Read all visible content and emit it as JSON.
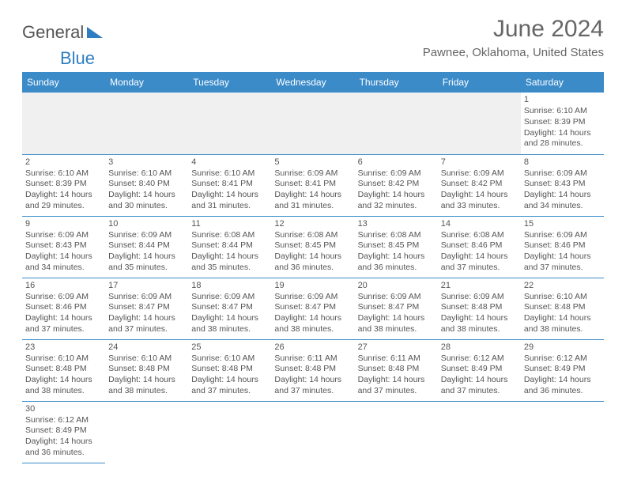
{
  "logo": {
    "part1": "General",
    "part2": "Blue"
  },
  "title": "June 2024",
  "location": "Pawnee, Oklahoma, United States",
  "colors": {
    "header_bg": "#3b8bc9",
    "header_text": "#ffffff",
    "border": "#3b8bc9",
    "text": "#555555",
    "title_color": "#666666",
    "logo_blue": "#2f7ec2"
  },
  "day_headers": [
    "Sunday",
    "Monday",
    "Tuesday",
    "Wednesday",
    "Thursday",
    "Friday",
    "Saturday"
  ],
  "weeks": [
    [
      null,
      null,
      null,
      null,
      null,
      null,
      {
        "n": "1",
        "sr": "6:10 AM",
        "ss": "8:39 PM",
        "dh": "14",
        "dm": "28"
      }
    ],
    [
      {
        "n": "2",
        "sr": "6:10 AM",
        "ss": "8:39 PM",
        "dh": "14",
        "dm": "29"
      },
      {
        "n": "3",
        "sr": "6:10 AM",
        "ss": "8:40 PM",
        "dh": "14",
        "dm": "30"
      },
      {
        "n": "4",
        "sr": "6:10 AM",
        "ss": "8:41 PM",
        "dh": "14",
        "dm": "31"
      },
      {
        "n": "5",
        "sr": "6:09 AM",
        "ss": "8:41 PM",
        "dh": "14",
        "dm": "31"
      },
      {
        "n": "6",
        "sr": "6:09 AM",
        "ss": "8:42 PM",
        "dh": "14",
        "dm": "32"
      },
      {
        "n": "7",
        "sr": "6:09 AM",
        "ss": "8:42 PM",
        "dh": "14",
        "dm": "33"
      },
      {
        "n": "8",
        "sr": "6:09 AM",
        "ss": "8:43 PM",
        "dh": "14",
        "dm": "34"
      }
    ],
    [
      {
        "n": "9",
        "sr": "6:09 AM",
        "ss": "8:43 PM",
        "dh": "14",
        "dm": "34"
      },
      {
        "n": "10",
        "sr": "6:09 AM",
        "ss": "8:44 PM",
        "dh": "14",
        "dm": "35"
      },
      {
        "n": "11",
        "sr": "6:08 AM",
        "ss": "8:44 PM",
        "dh": "14",
        "dm": "35"
      },
      {
        "n": "12",
        "sr": "6:08 AM",
        "ss": "8:45 PM",
        "dh": "14",
        "dm": "36"
      },
      {
        "n": "13",
        "sr": "6:08 AM",
        "ss": "8:45 PM",
        "dh": "14",
        "dm": "36"
      },
      {
        "n": "14",
        "sr": "6:08 AM",
        "ss": "8:46 PM",
        "dh": "14",
        "dm": "37"
      },
      {
        "n": "15",
        "sr": "6:09 AM",
        "ss": "8:46 PM",
        "dh": "14",
        "dm": "37"
      }
    ],
    [
      {
        "n": "16",
        "sr": "6:09 AM",
        "ss": "8:46 PM",
        "dh": "14",
        "dm": "37"
      },
      {
        "n": "17",
        "sr": "6:09 AM",
        "ss": "8:47 PM",
        "dh": "14",
        "dm": "37"
      },
      {
        "n": "18",
        "sr": "6:09 AM",
        "ss": "8:47 PM",
        "dh": "14",
        "dm": "38"
      },
      {
        "n": "19",
        "sr": "6:09 AM",
        "ss": "8:47 PM",
        "dh": "14",
        "dm": "38"
      },
      {
        "n": "20",
        "sr": "6:09 AM",
        "ss": "8:47 PM",
        "dh": "14",
        "dm": "38"
      },
      {
        "n": "21",
        "sr": "6:09 AM",
        "ss": "8:48 PM",
        "dh": "14",
        "dm": "38"
      },
      {
        "n": "22",
        "sr": "6:10 AM",
        "ss": "8:48 PM",
        "dh": "14",
        "dm": "38"
      }
    ],
    [
      {
        "n": "23",
        "sr": "6:10 AM",
        "ss": "8:48 PM",
        "dh": "14",
        "dm": "38"
      },
      {
        "n": "24",
        "sr": "6:10 AM",
        "ss": "8:48 PM",
        "dh": "14",
        "dm": "38"
      },
      {
        "n": "25",
        "sr": "6:10 AM",
        "ss": "8:48 PM",
        "dh": "14",
        "dm": "37"
      },
      {
        "n": "26",
        "sr": "6:11 AM",
        "ss": "8:48 PM",
        "dh": "14",
        "dm": "37"
      },
      {
        "n": "27",
        "sr": "6:11 AM",
        "ss": "8:48 PM",
        "dh": "14",
        "dm": "37"
      },
      {
        "n": "28",
        "sr": "6:12 AM",
        "ss": "8:49 PM",
        "dh": "14",
        "dm": "37"
      },
      {
        "n": "29",
        "sr": "6:12 AM",
        "ss": "8:49 PM",
        "dh": "14",
        "dm": "36"
      }
    ],
    [
      {
        "n": "30",
        "sr": "6:12 AM",
        "ss": "8:49 PM",
        "dh": "14",
        "dm": "36"
      },
      null,
      null,
      null,
      null,
      null,
      null
    ]
  ],
  "labels": {
    "sunrise": "Sunrise:",
    "sunset": "Sunset:",
    "daylight": "Daylight:",
    "hours": "hours",
    "and": "and",
    "minutes": "minutes."
  }
}
